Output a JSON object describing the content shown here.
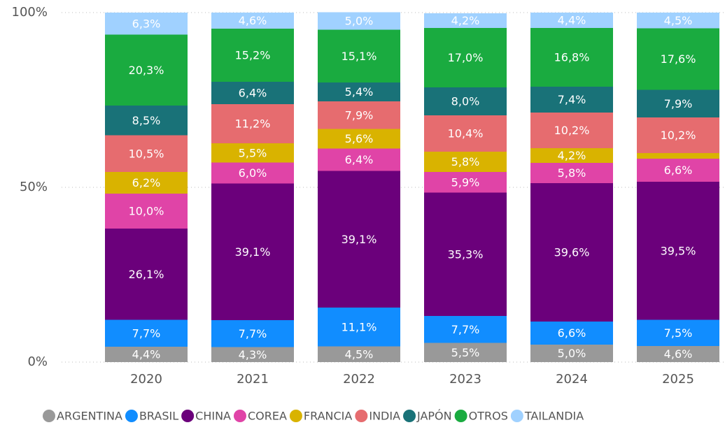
{
  "chart_data": {
    "type": "stacked_bar",
    "categories": [
      "2020",
      "2021",
      "2022",
      "2023",
      "2024",
      "2025"
    ],
    "ylim": [
      0,
      100
    ],
    "yticks": [
      {
        "value": 0,
        "label": "0%"
      },
      {
        "value": 50,
        "label": "50%"
      },
      {
        "value": 100,
        "label": "100%"
      }
    ],
    "grid": true,
    "legend": "bottom",
    "series": [
      {
        "name": "ARGENTINA",
        "color": "#999999",
        "values": [
          4.4,
          4.3,
          4.5,
          5.5,
          5.0,
          4.6
        ],
        "value_labels": [
          "4,4%",
          "4,3%",
          "4,5%",
          "5,5%",
          "5,0%",
          "4,6%"
        ]
      },
      {
        "name": "BRASIL",
        "color": "#118DFF",
        "values": [
          7.7,
          7.7,
          11.1,
          7.7,
          6.6,
          7.5
        ],
        "value_labels": [
          "7,7%",
          "7,7%",
          "11,1%",
          "7,7%",
          "6,6%",
          "7,5%"
        ]
      },
      {
        "name": "CHINA",
        "color": "#6B007B",
        "values": [
          26.1,
          39.1,
          39.1,
          35.3,
          39.6,
          39.5
        ],
        "value_labels": [
          "26,1%",
          "39,1%",
          "39,1%",
          "35,3%",
          "39,6%",
          "39,5%"
        ]
      },
      {
        "name": "COREA",
        "color": "#E044A7",
        "values": [
          10.0,
          6.0,
          6.4,
          5.9,
          5.8,
          6.6
        ],
        "value_labels": [
          "10,0%",
          "6,0%",
          "6,4%",
          "5,9%",
          "5,8%",
          "6,6%"
        ]
      },
      {
        "name": "FRANCIA",
        "color": "#D9B300",
        "values": [
          6.2,
          5.5,
          5.6,
          5.8,
          4.2,
          1.6
        ],
        "value_labels": [
          "6,2%",
          "5,5%",
          "5,6%",
          "5,8%",
          "4,2%",
          null
        ]
      },
      {
        "name": "INDIA",
        "color": "#E66C6F",
        "values": [
          10.5,
          11.2,
          7.9,
          10.4,
          10.2,
          10.2
        ],
        "value_labels": [
          "10,5%",
          "11,2%",
          "7,9%",
          "10,4%",
          "10,2%",
          "10,2%"
        ]
      },
      {
        "name": "JAPÓN",
        "color": "#197278",
        "values": [
          8.5,
          6.4,
          5.4,
          8.0,
          7.4,
          7.9
        ],
        "value_labels": [
          "8,5%",
          "6,4%",
          "5,4%",
          "8,0%",
          "7,4%",
          "7,9%"
        ]
      },
      {
        "name": "OTROS",
        "color": "#1AAB40",
        "values": [
          20.3,
          15.2,
          15.1,
          17.0,
          16.8,
          17.6
        ],
        "value_labels": [
          "20,3%",
          "15,2%",
          "15,1%",
          "17,0%",
          "16,8%",
          "17,6%"
        ]
      },
      {
        "name": "TAILANDIA",
        "color": "#A0D1FF",
        "values": [
          6.3,
          4.6,
          5.0,
          4.2,
          4.4,
          4.5
        ],
        "value_labels": [
          "6,3%",
          "4,6%",
          "5,0%",
          "4,2%",
          "4,4%",
          "4,5%"
        ]
      }
    ]
  }
}
